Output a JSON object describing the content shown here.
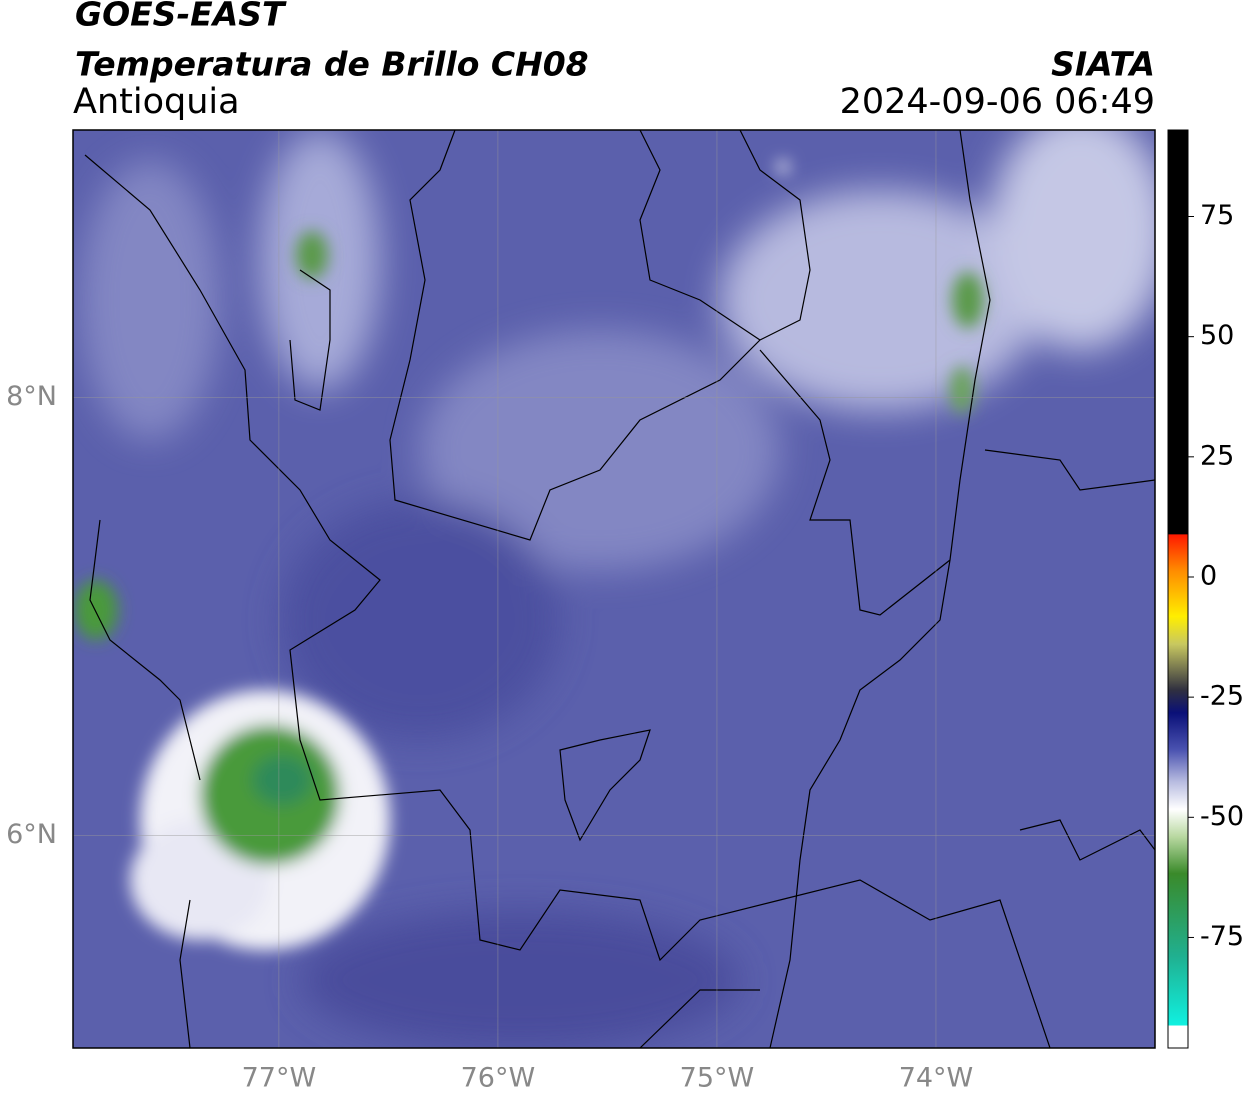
{
  "header": {
    "title": "GOES-EAST",
    "subtitle": "Temperatura de Brillo CH08",
    "region": "Antioquia",
    "source": "SIATA",
    "timestamp": "2024-09-06 06:49"
  },
  "map": {
    "xlim": [
      -77.94,
      -73.0
    ],
    "ylim": [
      5.03,
      9.22
    ],
    "xticks": [
      {
        "value": -77,
        "label": "77°W"
      },
      {
        "value": -76,
        "label": "76°W"
      },
      {
        "value": -75,
        "label": "75°W"
      },
      {
        "value": -74,
        "label": "74°W"
      }
    ],
    "yticks": [
      {
        "value": 8,
        "label": "8°N"
      },
      {
        "value": 6,
        "label": "6°N"
      }
    ]
  },
  "colorbar": {
    "lim": [
      -98,
      93
    ],
    "ticks": [
      75,
      50,
      25,
      0,
      -25,
      -50,
      -75
    ]
  }
}
